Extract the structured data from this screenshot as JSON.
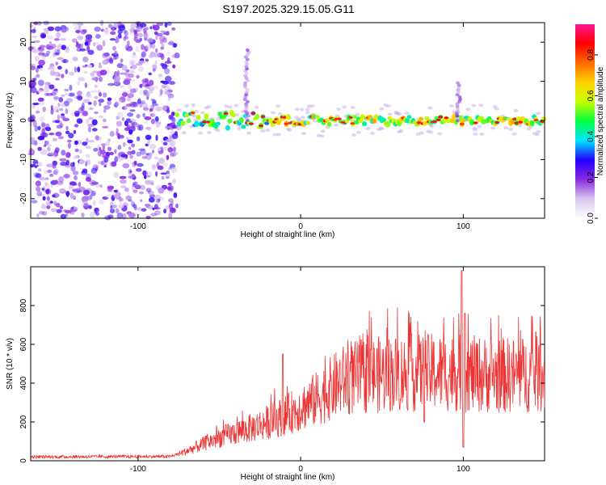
{
  "title": "S197.2025.329.15.05.G11",
  "chart_data": [
    {
      "type": "heatmap",
      "name": "spectrogram",
      "xlabel": "Height of straight line (km)",
      "ylabel": "Frequency (Hz)",
      "xlim": [
        -166,
        150
      ],
      "ylim": [
        -25,
        25
      ],
      "xticks": [
        -100,
        0,
        100
      ],
      "yticks": [
        -20,
        -10,
        0,
        10,
        20
      ],
      "colorbar": {
        "label": "Normalized spectral amplitude",
        "range": [
          0,
          0.95
        ],
        "ticks": [
          0.0,
          0.2,
          0.4,
          0.6,
          0.8
        ],
        "colors": [
          "#ffffff",
          "#d8c8f0",
          "#8a2be2",
          "#2200ff",
          "#00e5ff",
          "#00ff40",
          "#c8ff00",
          "#ffd200",
          "#ff6a00",
          "#ff0000",
          "#ff1493"
        ]
      },
      "noise_region_x": [
        -166,
        -76
      ],
      "ridge_center_freq_hz": 0,
      "ridge_x_range": [
        -76,
        150
      ],
      "ridge_bursts": [
        {
          "x": -33,
          "freq_range": [
            0,
            18
          ]
        },
        {
          "x": 97,
          "freq_range": [
            0,
            10
          ]
        }
      ]
    },
    {
      "type": "line",
      "name": "snr",
      "xlabel": "Height of straight line (km)",
      "ylabel": "SNR (10 * v/v)",
      "xlim": [
        -166,
        150
      ],
      "ylim": [
        0,
        1000
      ],
      "xticks": [
        -100,
        0,
        100
      ],
      "yticks": [
        0,
        200,
        400,
        600,
        800
      ],
      "color": "#ee3333",
      "trend": [
        {
          "x": -166,
          "y": 20
        },
        {
          "x": -80,
          "y": 22
        },
        {
          "x": -70,
          "y": 50
        },
        {
          "x": -50,
          "y": 120
        },
        {
          "x": -30,
          "y": 170
        },
        {
          "x": -10,
          "y": 230
        },
        {
          "x": 10,
          "y": 320
        },
        {
          "x": 25,
          "y": 410
        },
        {
          "x": 40,
          "y": 440
        },
        {
          "x": 60,
          "y": 450
        },
        {
          "x": 90,
          "y": 455
        },
        {
          "x": 120,
          "y": 440
        },
        {
          "x": 150,
          "y": 445
        }
      ],
      "spikes": [
        {
          "x": -11,
          "y": 550
        },
        {
          "x": 76,
          "y": 200
        },
        {
          "x": 99,
          "y": 980
        },
        {
          "x": 100,
          "y": 70
        },
        {
          "x": 101,
          "y": 760
        }
      ]
    }
  ]
}
